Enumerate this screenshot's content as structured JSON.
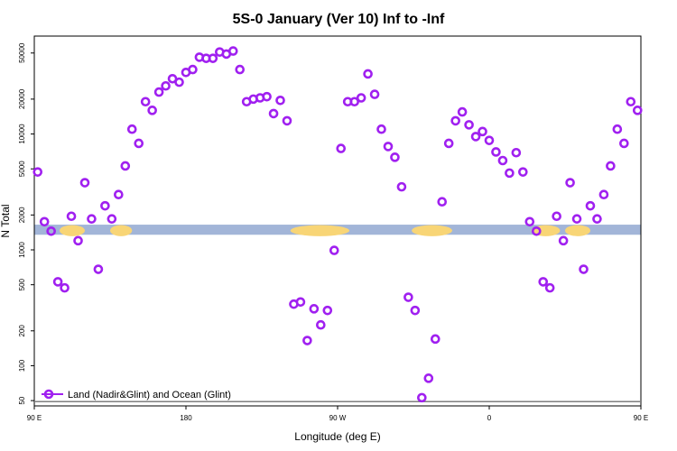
{
  "chart_data": {
    "type": "scatter",
    "title": "5S-0 January (Ver 10)   Inf to -Inf",
    "xlabel": "Longitude (deg E)",
    "ylabel": "N Total",
    "y_scale": "log",
    "xlim": [
      0,
      360
    ],
    "ylim": [
      45,
      70000
    ],
    "x_ticks": [
      {
        "value": 0,
        "label": "90 E"
      },
      {
        "value": 90,
        "label": "180"
      },
      {
        "value": 180,
        "label": "90 W"
      },
      {
        "value": 270,
        "label": "0"
      },
      {
        "value": 360,
        "label": "90 E"
      }
    ],
    "y_ticks": [
      50,
      100,
      200,
      500,
      1000,
      2000,
      5000,
      10000,
      20000,
      50000
    ],
    "marker_color": "#a020f0",
    "band_color": "#a2b5d8",
    "land_color": "#f8d576",
    "baseline_color": "#7f7f7f",
    "land_band": {
      "lat_label": "5S-0",
      "y_low": 1350,
      "y_high": 1650
    },
    "land_segments": [
      [
        15,
        30
      ],
      [
        45,
        58
      ],
      [
        152,
        187
      ],
      [
        224,
        248
      ],
      [
        295,
        312
      ],
      [
        315,
        330
      ]
    ],
    "baseline_y": 49,
    "legend": {
      "label": "Land (Nadir&Glint) and Ocean (Glint)",
      "position": "bottom-left"
    },
    "series": [
      {
        "name": "Land (Nadir&Glint) and Ocean (Glint)",
        "points": [
          [
            2,
            4700
          ],
          [
            6,
            1750
          ],
          [
            10,
            1450
          ],
          [
            14,
            530
          ],
          [
            18,
            470
          ],
          [
            22,
            1950
          ],
          [
            26,
            1200
          ],
          [
            30,
            3800
          ],
          [
            34,
            1850
          ],
          [
            38,
            680
          ],
          [
            42,
            2400
          ],
          [
            46,
            1850
          ],
          [
            50,
            3000
          ],
          [
            54,
            5300
          ],
          [
            58,
            11000
          ],
          [
            62,
            8300
          ],
          [
            66,
            19000
          ],
          [
            70,
            16000
          ],
          [
            74,
            23000
          ],
          [
            78,
            26000
          ],
          [
            82,
            30000
          ],
          [
            86,
            28000
          ],
          [
            90,
            34000
          ],
          [
            94,
            36000
          ],
          [
            98,
            46000
          ],
          [
            102,
            45000
          ],
          [
            106,
            45000
          ],
          [
            110,
            51000
          ],
          [
            114,
            49000
          ],
          [
            118,
            52000
          ],
          [
            122,
            36000
          ],
          [
            126,
            19000
          ],
          [
            130,
            20000
          ],
          [
            134,
            20500
          ],
          [
            138,
            21000
          ],
          [
            142,
            15000
          ],
          [
            146,
            19500
          ],
          [
            150,
            13000
          ],
          [
            154,
            340
          ],
          [
            158,
            355
          ],
          [
            162,
            165
          ],
          [
            166,
            310
          ],
          [
            170,
            225
          ],
          [
            174,
            300
          ],
          [
            178,
            990
          ],
          [
            182,
            7500
          ],
          [
            186,
            19000
          ],
          [
            190,
            19000
          ],
          [
            194,
            20500
          ],
          [
            198,
            33000
          ],
          [
            202,
            22000
          ],
          [
            206,
            11000
          ],
          [
            210,
            7800
          ],
          [
            214,
            6300
          ],
          [
            218,
            3500
          ],
          [
            222,
            390
          ],
          [
            226,
            300
          ],
          [
            230,
            53
          ],
          [
            234,
            78
          ],
          [
            238,
            170
          ],
          [
            242,
            2600
          ],
          [
            246,
            8300
          ],
          [
            250,
            13000
          ],
          [
            254,
            15500
          ],
          [
            258,
            12000
          ],
          [
            262,
            9500
          ],
          [
            266,
            10500
          ],
          [
            270,
            8800
          ],
          [
            274,
            7000
          ],
          [
            278,
            5900
          ],
          [
            282,
            4600
          ],
          [
            286,
            6900
          ],
          [
            290,
            4700
          ],
          [
            294,
            1750
          ],
          [
            298,
            1450
          ],
          [
            302,
            530
          ],
          [
            306,
            470
          ],
          [
            310,
            1950
          ],
          [
            314,
            1200
          ],
          [
            318,
            3800
          ],
          [
            322,
            1850
          ],
          [
            326,
            680
          ],
          [
            330,
            2400
          ],
          [
            334,
            1850
          ],
          [
            338,
            3000
          ],
          [
            342,
            5300
          ],
          [
            346,
            11000
          ],
          [
            350,
            8300
          ],
          [
            354,
            19000
          ],
          [
            358,
            16000
          ]
        ]
      }
    ]
  }
}
